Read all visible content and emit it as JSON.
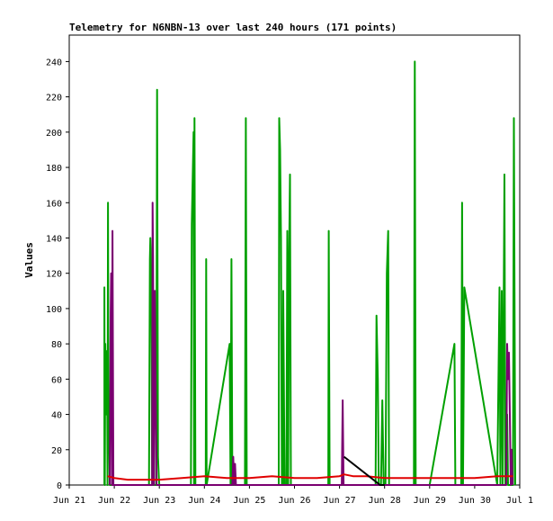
{
  "chart_data": {
    "type": "line",
    "title": "Telemetry for N6NBN-13 over last 240 hours (171 points)",
    "xlabel": "",
    "ylabel": "Values",
    "ylim": [
      0,
      255
    ],
    "xlim": [
      0,
      10
    ],
    "x_ticks": [
      {
        "x": 0,
        "label": "Jun 21"
      },
      {
        "x": 1,
        "label": "Jun 22"
      },
      {
        "x": 2,
        "label": "Jun 23"
      },
      {
        "x": 3,
        "label": "Jun 24"
      },
      {
        "x": 4,
        "label": "Jun 25"
      },
      {
        "x": 5,
        "label": "Jun 26"
      },
      {
        "x": 6,
        "label": "Jun 27"
      },
      {
        "x": 7,
        "label": "Jun 28"
      },
      {
        "x": 8,
        "label": "Jun 29"
      },
      {
        "x": 9,
        "label": "Jun 30"
      },
      {
        "x": 10,
        "label": "Jul 1"
      }
    ],
    "y_ticks": [
      0,
      20,
      40,
      60,
      80,
      100,
      120,
      140,
      160,
      180,
      200,
      220,
      240
    ],
    "grid": false,
    "legend": "none",
    "series": [
      {
        "color": "#00a000",
        "points": [
          [
            0.78,
            0
          ],
          [
            0.78,
            112
          ],
          [
            0.79,
            0
          ],
          [
            0.8,
            80
          ],
          [
            0.82,
            40
          ],
          [
            0.84,
            76
          ],
          [
            0.85,
            0
          ],
          [
            0.86,
            160
          ],
          [
            0.87,
            60
          ],
          [
            0.9,
            0
          ],
          [
            1.77,
            0
          ],
          [
            1.79,
            128
          ],
          [
            1.8,
            140
          ],
          [
            1.82,
            120
          ],
          [
            1.84,
            0
          ],
          [
            1.93,
            0
          ],
          [
            1.95,
            224
          ],
          [
            1.97,
            16
          ],
          [
            1.99,
            4
          ],
          [
            2.0,
            0
          ],
          [
            2.7,
            0
          ],
          [
            2.72,
            148
          ],
          [
            2.76,
            200
          ],
          [
            2.77,
            0
          ],
          [
            2.78,
            208
          ],
          [
            2.8,
            0
          ],
          [
            3.03,
            0
          ],
          [
            3.04,
            128
          ],
          [
            3.05,
            0
          ],
          [
            3.56,
            80
          ],
          [
            3.58,
            0
          ],
          [
            3.6,
            128
          ],
          [
            3.62,
            0
          ],
          [
            3.9,
            0
          ],
          [
            3.92,
            208
          ],
          [
            3.94,
            0
          ],
          [
            4.65,
            0
          ],
          [
            4.66,
            208
          ],
          [
            4.68,
            190
          ],
          [
            4.7,
            140
          ],
          [
            4.72,
            0
          ],
          [
            4.74,
            0
          ],
          [
            4.75,
            110
          ],
          [
            4.78,
            0
          ],
          [
            4.82,
            0
          ],
          [
            4.84,
            144
          ],
          [
            4.86,
            0
          ],
          [
            4.88,
            128
          ],
          [
            4.9,
            176
          ],
          [
            4.92,
            0
          ],
          [
            4.94,
            0
          ],
          [
            5.75,
            0
          ],
          [
            5.76,
            144
          ],
          [
            5.78,
            0
          ],
          [
            6.0,
            0
          ],
          [
            6.8,
            0
          ],
          [
            6.82,
            96
          ],
          [
            6.85,
            60
          ],
          [
            6.87,
            0
          ],
          [
            6.92,
            0
          ],
          [
            6.95,
            48
          ],
          [
            6.98,
            0
          ],
          [
            7.02,
            0
          ],
          [
            7.05,
            120
          ],
          [
            7.08,
            144
          ],
          [
            7.1,
            0
          ],
          [
            7.65,
            0
          ],
          [
            7.67,
            240
          ],
          [
            7.69,
            0
          ],
          [
            8.0,
            0
          ],
          [
            8.55,
            80
          ],
          [
            8.57,
            0
          ],
          [
            8.7,
            0
          ],
          [
            8.72,
            160
          ],
          [
            8.74,
            0
          ],
          [
            8.77,
            112
          ],
          [
            9.5,
            0
          ],
          [
            9.55,
            112
          ],
          [
            9.57,
            0
          ],
          [
            9.6,
            110
          ],
          [
            9.62,
            0
          ],
          [
            9.66,
            176
          ],
          [
            9.68,
            0
          ],
          [
            9.72,
            40
          ],
          [
            9.74,
            0
          ],
          [
            9.85,
            0
          ],
          [
            9.87,
            208
          ],
          [
            9.9,
            0
          ]
        ]
      },
      {
        "color": "#7a0070",
        "points": [
          [
            0.9,
            0
          ],
          [
            0.92,
            98
          ],
          [
            0.93,
            120
          ],
          [
            0.95,
            0
          ],
          [
            0.96,
            144
          ],
          [
            0.98,
            0
          ],
          [
            1.84,
            0
          ],
          [
            1.85,
            160
          ],
          [
            1.86,
            130
          ],
          [
            1.88,
            0
          ],
          [
            1.9,
            110
          ],
          [
            1.92,
            50
          ],
          [
            1.94,
            0
          ],
          [
            3.62,
            0
          ],
          [
            3.64,
            16
          ],
          [
            3.66,
            0
          ],
          [
            3.68,
            12
          ],
          [
            3.7,
            0
          ],
          [
            6.05,
            0
          ],
          [
            6.07,
            48
          ],
          [
            6.09,
            0
          ],
          [
            9.7,
            0
          ],
          [
            9.72,
            80
          ],
          [
            9.74,
            60
          ],
          [
            9.76,
            75
          ],
          [
            9.78,
            40
          ],
          [
            9.8,
            0
          ],
          [
            9.82,
            20
          ],
          [
            9.84,
            0
          ]
        ]
      },
      {
        "color": "#e00000",
        "points": [
          [
            0.85,
            5
          ],
          [
            1.0,
            4
          ],
          [
            1.3,
            3
          ],
          [
            1.6,
            3
          ],
          [
            2.0,
            3
          ],
          [
            2.5,
            4
          ],
          [
            3.0,
            5
          ],
          [
            3.5,
            4
          ],
          [
            4.0,
            4
          ],
          [
            4.5,
            5
          ],
          [
            5.0,
            4
          ],
          [
            5.5,
            4
          ],
          [
            6.0,
            5
          ],
          [
            6.1,
            6
          ],
          [
            6.3,
            5
          ],
          [
            6.6,
            5
          ],
          [
            7.0,
            4
          ],
          [
            7.3,
            4
          ],
          [
            7.5,
            4
          ],
          [
            8.0,
            4
          ],
          [
            8.5,
            4
          ],
          [
            9.0,
            4
          ],
          [
            9.5,
            5
          ],
          [
            9.85,
            5
          ]
        ]
      },
      {
        "color": "#000000",
        "points": [
          [
            6.1,
            16
          ],
          [
            6.9,
            0
          ],
          [
            7.0,
            0
          ]
        ]
      }
    ]
  }
}
